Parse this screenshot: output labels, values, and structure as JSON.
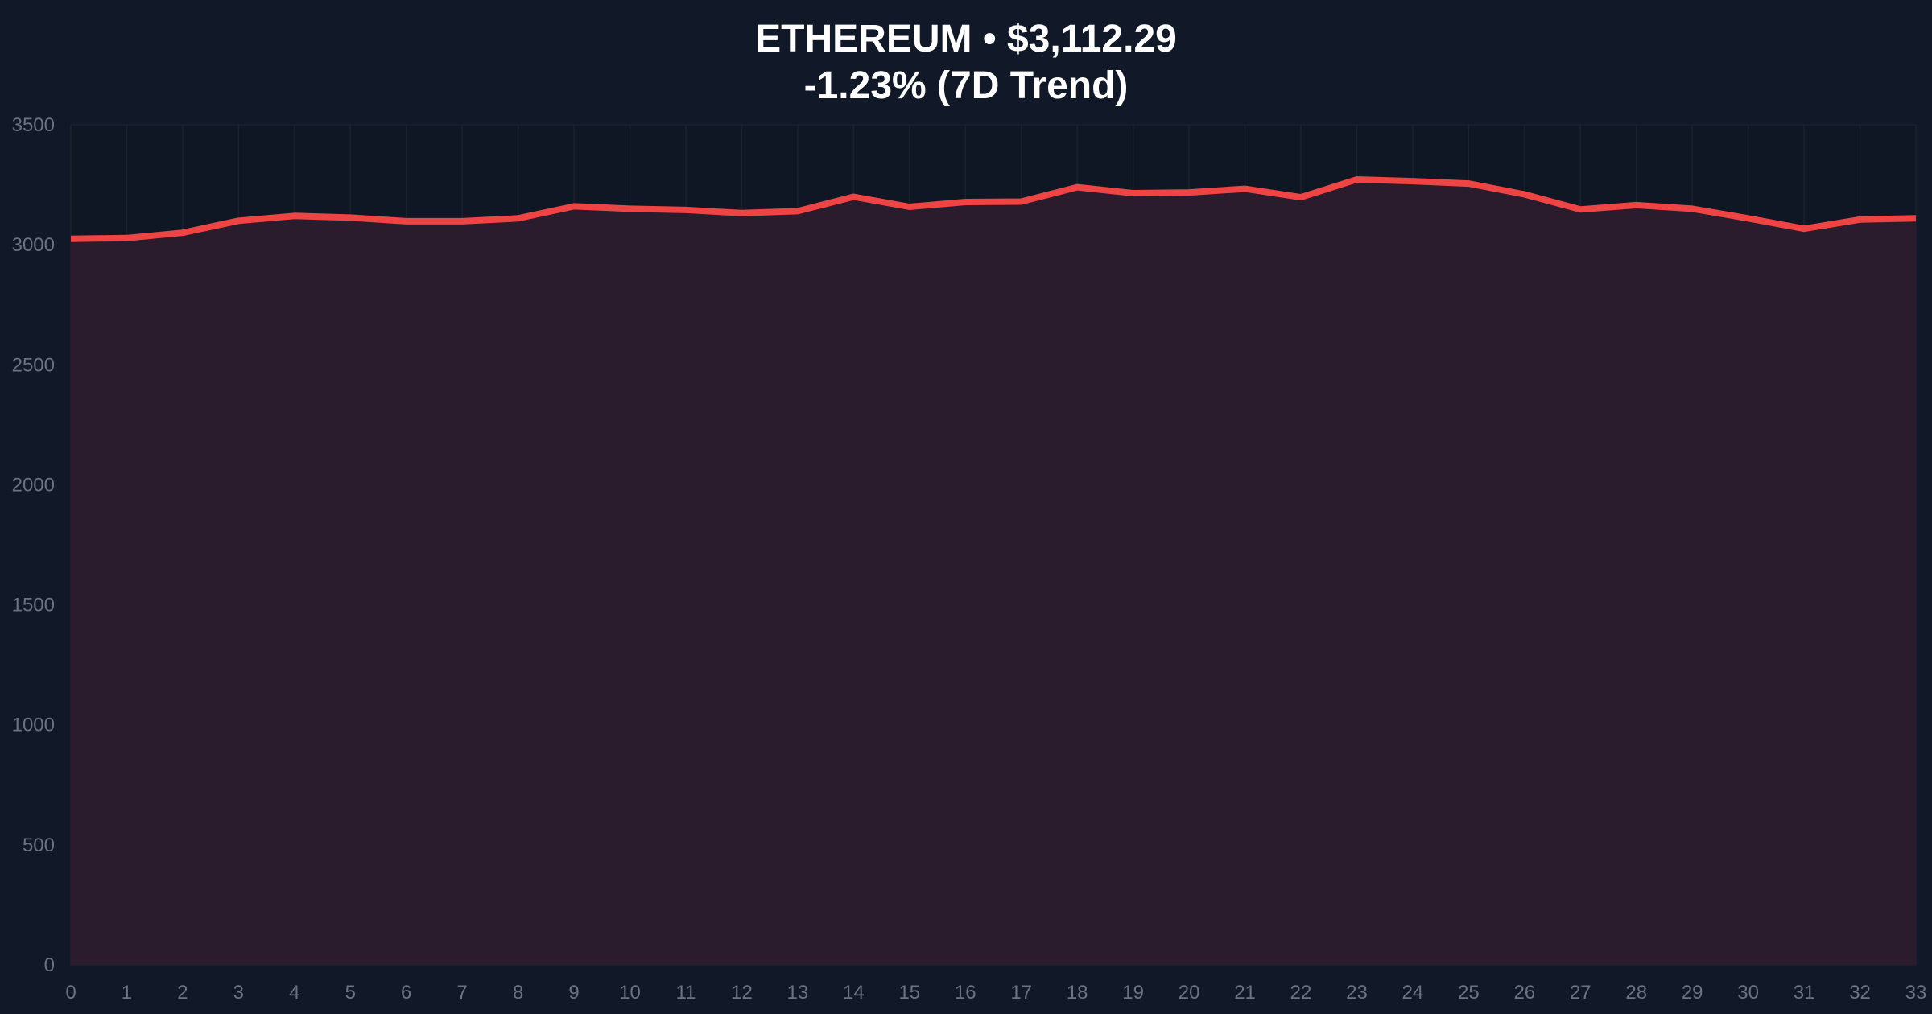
{
  "chart_data": {
    "type": "area",
    "title": "ETHEREUM • $3,112.29",
    "subtitle": "-1.23% (7D Trend)",
    "xlabel": "",
    "ylabel": "",
    "x": [
      0,
      1,
      2,
      3,
      4,
      5,
      6,
      7,
      8,
      9,
      10,
      11,
      12,
      13,
      14,
      15,
      16,
      17,
      18,
      19,
      20,
      21,
      22,
      23,
      24,
      25,
      26,
      27,
      28,
      29,
      30,
      31,
      32,
      33
    ],
    "values": [
      3025,
      3028,
      3050,
      3100,
      3120,
      3113,
      3098,
      3098,
      3110,
      3160,
      3150,
      3145,
      3132,
      3140,
      3200,
      3158,
      3178,
      3180,
      3240,
      3215,
      3218,
      3233,
      3198,
      3272,
      3265,
      3255,
      3210,
      3147,
      3165,
      3150,
      3110,
      3067,
      3105,
      3110
    ],
    "xlim": [
      0,
      33
    ],
    "ylim": [
      0,
      3500
    ],
    "y_ticks": [
      0,
      500,
      1000,
      1500,
      2000,
      2500,
      3000,
      3500
    ],
    "x_ticks": [
      0,
      1,
      2,
      3,
      4,
      5,
      6,
      7,
      8,
      9,
      10,
      11,
      12,
      13,
      14,
      15,
      16,
      17,
      18,
      19,
      20,
      21,
      22,
      23,
      24,
      25,
      26,
      27,
      28,
      29,
      30,
      31,
      32,
      33
    ],
    "grid": true,
    "legend": "none",
    "colors": {
      "background": "#111827",
      "plot_background": "#111827",
      "line": "#ef4444",
      "fill": "#2a1c2c",
      "grid": "#1a2230",
      "tick_text": "#6b7280",
      "title_text": "#ffffff"
    }
  }
}
